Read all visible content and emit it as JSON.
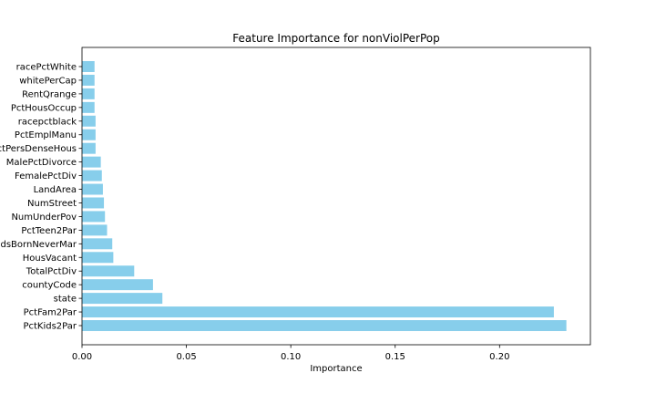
{
  "chart_data": {
    "type": "bar",
    "orientation": "horizontal",
    "title": "Feature Importance for nonViolPerPop",
    "xlabel": "Importance",
    "ylabel": "",
    "xlim": [
      0,
      0.2435
    ],
    "xticks": [
      0,
      0.05,
      0.1,
      0.15,
      0.2
    ],
    "xtick_labels": [
      "0.00",
      "0.05",
      "0.10",
      "0.15",
      "0.20"
    ],
    "bar_color": "#87ceeb",
    "grid": false,
    "legend": "none",
    "categories": [
      "PctKids2Par",
      "PctFam2Par",
      "state",
      "countyCode",
      "TotalPctDiv",
      "HousVacant",
      "PctKidsBornNeverMar",
      "PctTeen2Par",
      "NumUnderPov",
      "NumStreet",
      "LandArea",
      "FemalePctDiv",
      "MalePctDivorce",
      "PctPersDenseHous",
      "PctEmplManu",
      "racepctblack",
      "PctHousOccup",
      "RentQrange",
      "whitePerCap",
      "racePctWhite"
    ],
    "values": [
      0.232,
      0.226,
      0.0385,
      0.034,
      0.025,
      0.015,
      0.0145,
      0.012,
      0.011,
      0.0105,
      0.01,
      0.0095,
      0.009,
      0.0065,
      0.0065,
      0.0065,
      0.006,
      0.006,
      0.006,
      0.006
    ]
  }
}
